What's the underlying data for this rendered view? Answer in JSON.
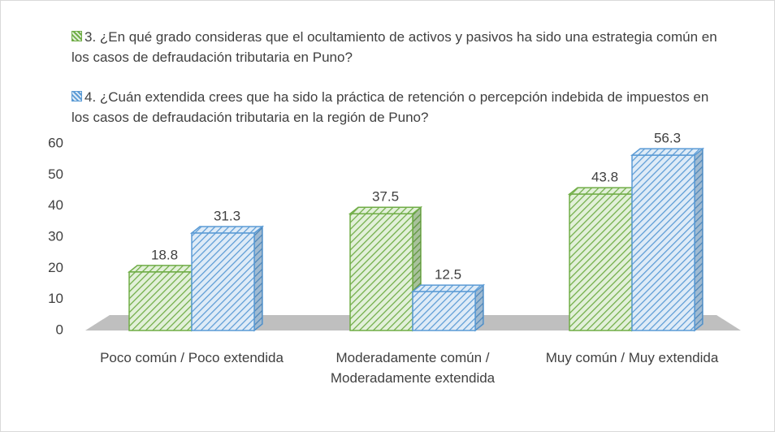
{
  "chart_data": {
    "type": "bar3d",
    "categories": [
      "Poco común / Poco extendida",
      "Moderadamente común / Moderadamente extendida",
      "Muy común / Muy extendida"
    ],
    "series": [
      {
        "name": "3. ¿En qué grado consideras que el ocultamiento de activos y pasivos ha sido una estrategia común en los casos de defraudación tributaria en Puno?",
        "color": "#70ad47",
        "values": [
          18.8,
          37.5,
          43.8
        ]
      },
      {
        "name": "4. ¿Cuán extendida crees que ha sido la práctica de retención o percepción indebida de impuestos en los casos de defraudación tributaria en la región de Puno?",
        "color": "#5b9bd5",
        "values": [
          31.3,
          12.5,
          56.3
        ]
      }
    ],
    "ylim": [
      0,
      60
    ],
    "yticks": [
      0,
      10,
      20,
      30,
      40,
      50,
      60
    ],
    "legend": "top"
  }
}
